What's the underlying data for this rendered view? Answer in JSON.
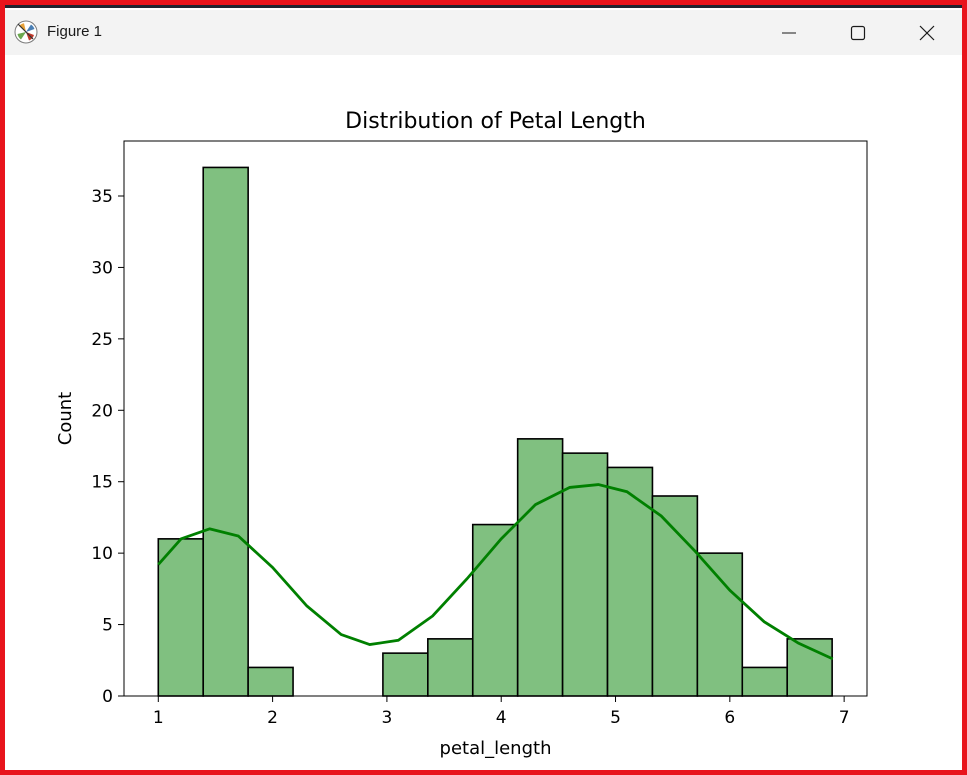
{
  "window": {
    "title": "Figure 1",
    "icon": "matplotlib-icon",
    "controls": [
      "minimize-icon",
      "maximize-icon",
      "close-icon"
    ]
  },
  "colors": {
    "bar_fill": "#80c080",
    "bar_edge": "#000000",
    "kde_line": "#008000",
    "frame_border": "#e8141c",
    "titlebar": "#f3f3f3"
  },
  "chart_data": {
    "type": "bar",
    "title": "Distribution of Petal Length",
    "xlabel": "petal_length",
    "ylabel": "Count",
    "xlim": [
      0.7,
      7.2
    ],
    "ylim": [
      0,
      38.85
    ],
    "x_ticks": [
      1,
      2,
      3,
      4,
      5,
      6,
      7
    ],
    "y_ticks": [
      0,
      5,
      10,
      15,
      20,
      25,
      30,
      35
    ],
    "grid": false,
    "bins": {
      "start": 1.0,
      "width": 0.393,
      "counts": [
        11,
        37,
        2,
        0,
        0,
        3,
        4,
        12,
        18,
        17,
        16,
        14,
        10,
        2,
        4
      ]
    },
    "kde": {
      "x": [
        1.0,
        1.2,
        1.45,
        1.7,
        2.0,
        2.3,
        2.6,
        2.85,
        3.1,
        3.4,
        3.7,
        4.0,
        4.3,
        4.6,
        4.85,
        5.1,
        5.4,
        5.7,
        6.0,
        6.3,
        6.6,
        6.9
      ],
      "y": [
        9.2,
        11.0,
        11.7,
        11.2,
        9.0,
        6.3,
        4.3,
        3.6,
        3.9,
        5.6,
        8.2,
        11.0,
        13.4,
        14.6,
        14.8,
        14.3,
        12.6,
        10.1,
        7.4,
        5.2,
        3.7,
        2.6
      ]
    }
  }
}
